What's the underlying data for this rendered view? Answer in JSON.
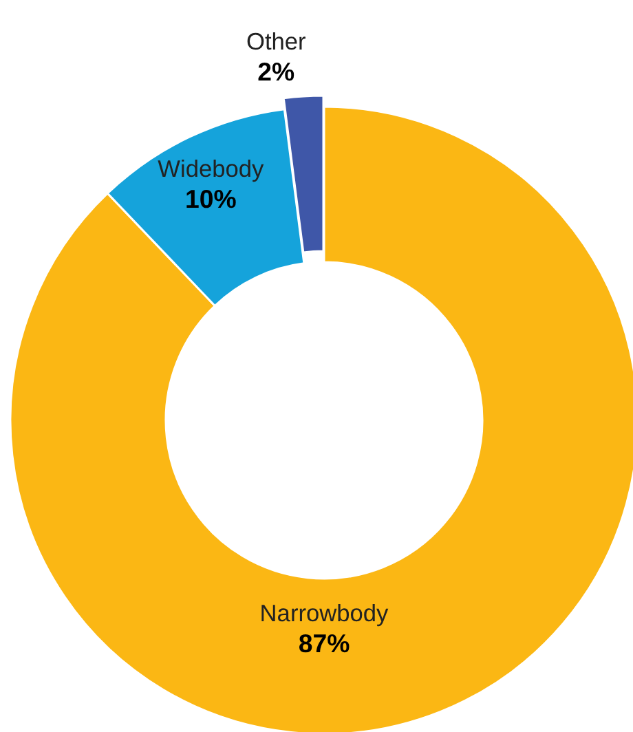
{
  "chart_data": {
    "type": "donut",
    "categories": [
      "Narrowbody",
      "Widebody",
      "Other"
    ],
    "values": [
      87,
      10,
      2
    ],
    "colors": [
      "#fbb714",
      "#15a3db",
      "#3f57a8"
    ],
    "value_labels": [
      "87%",
      "10%",
      "2%"
    ]
  }
}
